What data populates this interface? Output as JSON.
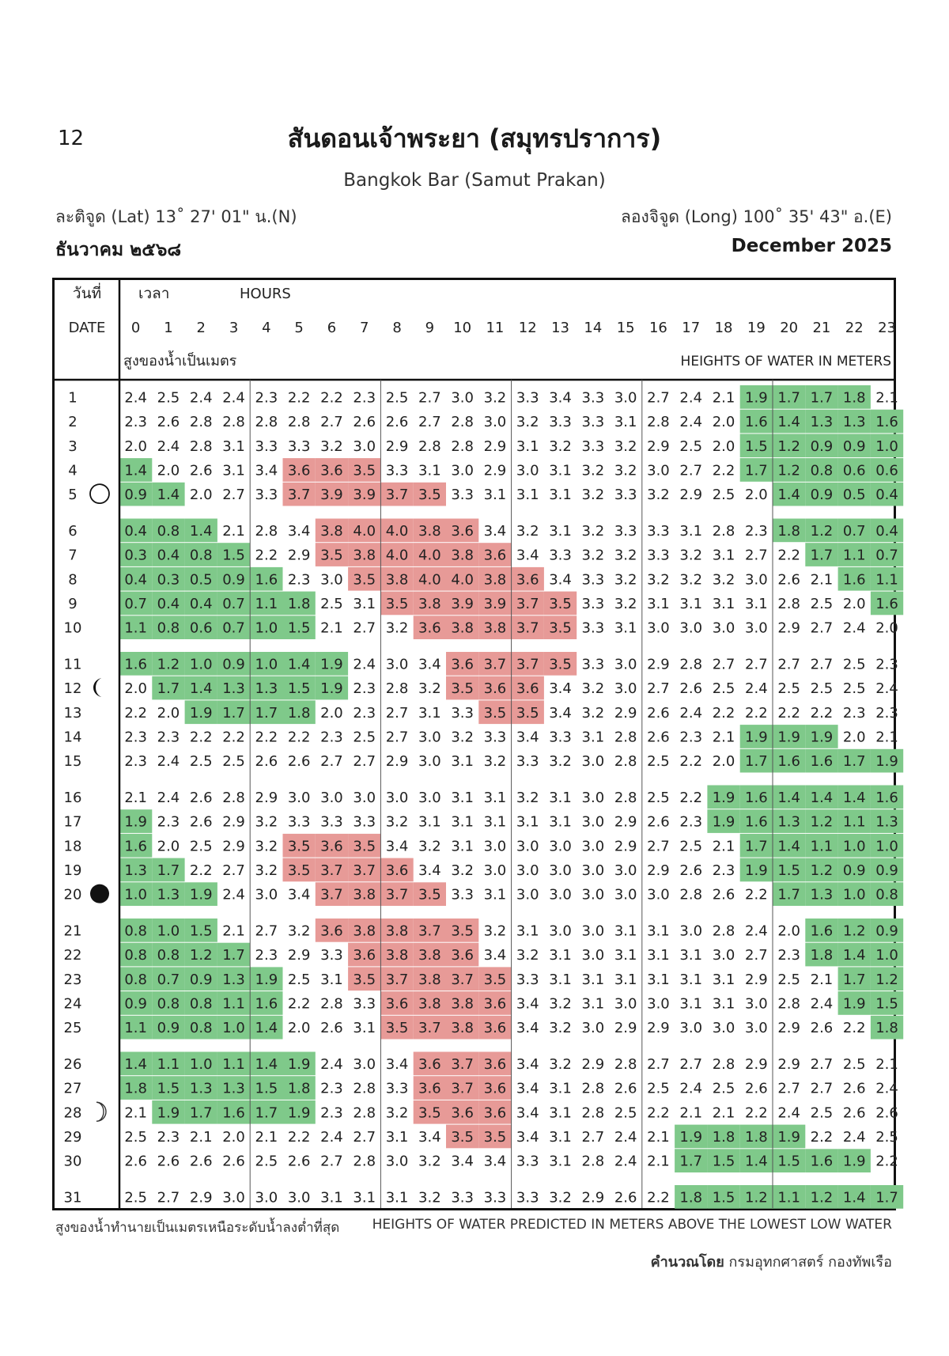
{
  "page_number": "12",
  "title_th": "สันดอนเจ้าพระยา (สมุทรปราการ)",
  "title_en": "Bangkok Bar (Samut Prakan)",
  "latitude": "ละติจูด (Lat) 13˚ 27' 01\" น.(N)",
  "longitude": "ลองจิจูด (Long) 100˚ 35' 43\" อ.(E)",
  "month_th": "ธันวาคม  ๒๕๖๘",
  "month_en": "December 2025",
  "header": {
    "date_th": "วันที่",
    "date_en": "DATE",
    "time_th": "เวลา",
    "hours_en": "HOURS",
    "heights_th": "สูงของน้ำเป็นเมตร",
    "heights_en": "HEIGHTS OF WATER IN METERS",
    "hours": [
      "0",
      "1",
      "2",
      "3",
      "4",
      "5",
      "6",
      "7",
      "8",
      "9",
      "10",
      "11",
      "12",
      "13",
      "14",
      "15",
      "16",
      "17",
      "18",
      "19",
      "20",
      "21",
      "22",
      "23"
    ]
  },
  "colors": {
    "low": "#7fc98a",
    "high": "#e79a97",
    "line": "#333333"
  },
  "moon_phases": [
    {
      "day": 5,
      "phase": "full-moon"
    },
    {
      "day": 12,
      "phase": "last-quarter"
    },
    {
      "day": 20,
      "phase": "new-moon"
    },
    {
      "day": 28,
      "phase": "first-quarter"
    }
  ],
  "tide_data": {
    "type": "table",
    "days": [
      1,
      2,
      3,
      4,
      5,
      6,
      7,
      8,
      9,
      10,
      11,
      12,
      13,
      14,
      15,
      16,
      17,
      18,
      19,
      20,
      21,
      22,
      23,
      24,
      25,
      26,
      27,
      28,
      29,
      30,
      31
    ],
    "heights": [
      [
        "2.4",
        "2.5",
        "2.4",
        "2.4",
        "2.3",
        "2.2",
        "2.2",
        "2.3",
        "2.5",
        "2.7",
        "3.0",
        "3.2",
        "3.3",
        "3.4",
        "3.3",
        "3.0",
        "2.7",
        "2.4",
        "2.1",
        "1.9",
        "1.7",
        "1.7",
        "1.8",
        "2.1"
      ],
      [
        "2.3",
        "2.6",
        "2.8",
        "2.8",
        "2.8",
        "2.8",
        "2.7",
        "2.6",
        "2.6",
        "2.7",
        "2.8",
        "3.0",
        "3.2",
        "3.3",
        "3.3",
        "3.1",
        "2.8",
        "2.4",
        "2.0",
        "1.6",
        "1.4",
        "1.3",
        "1.3",
        "1.6"
      ],
      [
        "2.0",
        "2.4",
        "2.8",
        "3.1",
        "3.3",
        "3.3",
        "3.2",
        "3.0",
        "2.9",
        "2.8",
        "2.8",
        "2.9",
        "3.1",
        "3.2",
        "3.3",
        "3.2",
        "2.9",
        "2.5",
        "2.0",
        "1.5",
        "1.2",
        "0.9",
        "0.9",
        "1.0"
      ],
      [
        "1.4",
        "2.0",
        "2.6",
        "3.1",
        "3.4",
        "3.6",
        "3.6",
        "3.5",
        "3.3",
        "3.1",
        "3.0",
        "2.9",
        "3.0",
        "3.1",
        "3.2",
        "3.2",
        "3.0",
        "2.7",
        "2.2",
        "1.7",
        "1.2",
        "0.8",
        "0.6",
        "0.6"
      ],
      [
        "0.9",
        "1.4",
        "2.0",
        "2.7",
        "3.3",
        "3.7",
        "3.9",
        "3.9",
        "3.7",
        "3.5",
        "3.3",
        "3.1",
        "3.1",
        "3.1",
        "3.2",
        "3.3",
        "3.2",
        "2.9",
        "2.5",
        "2.0",
        "1.4",
        "0.9",
        "0.5",
        "0.4"
      ],
      [
        "0.4",
        "0.8",
        "1.4",
        "2.1",
        "2.8",
        "3.4",
        "3.8",
        "4.0",
        "4.0",
        "3.8",
        "3.6",
        "3.4",
        "3.2",
        "3.1",
        "3.2",
        "3.3",
        "3.3",
        "3.1",
        "2.8",
        "2.3",
        "1.8",
        "1.2",
        "0.7",
        "0.4"
      ],
      [
        "0.3",
        "0.4",
        "0.8",
        "1.5",
        "2.2",
        "2.9",
        "3.5",
        "3.8",
        "4.0",
        "4.0",
        "3.8",
        "3.6",
        "3.4",
        "3.3",
        "3.2",
        "3.2",
        "3.3",
        "3.2",
        "3.1",
        "2.7",
        "2.2",
        "1.7",
        "1.1",
        "0.7"
      ],
      [
        "0.4",
        "0.3",
        "0.5",
        "0.9",
        "1.6",
        "2.3",
        "3.0",
        "3.5",
        "3.8",
        "4.0",
        "4.0",
        "3.8",
        "3.6",
        "3.4",
        "3.3",
        "3.2",
        "3.2",
        "3.2",
        "3.2",
        "3.0",
        "2.6",
        "2.1",
        "1.6",
        "1.1"
      ],
      [
        "0.7",
        "0.4",
        "0.4",
        "0.7",
        "1.1",
        "1.8",
        "2.5",
        "3.1",
        "3.5",
        "3.8",
        "3.9",
        "3.9",
        "3.7",
        "3.5",
        "3.3",
        "3.2",
        "3.1",
        "3.1",
        "3.1",
        "3.1",
        "2.8",
        "2.5",
        "2.0",
        "1.6"
      ],
      [
        "1.1",
        "0.8",
        "0.6",
        "0.7",
        "1.0",
        "1.5",
        "2.1",
        "2.7",
        "3.2",
        "3.6",
        "3.8",
        "3.8",
        "3.7",
        "3.5",
        "3.3",
        "3.1",
        "3.0",
        "3.0",
        "3.0",
        "3.0",
        "2.9",
        "2.7",
        "2.4",
        "2.0"
      ],
      [
        "1.6",
        "1.2",
        "1.0",
        "0.9",
        "1.0",
        "1.4",
        "1.9",
        "2.4",
        "3.0",
        "3.4",
        "3.6",
        "3.7",
        "3.7",
        "3.5",
        "3.3",
        "3.0",
        "2.9",
        "2.8",
        "2.7",
        "2.7",
        "2.7",
        "2.7",
        "2.5",
        "2.3"
      ],
      [
        "2.0",
        "1.7",
        "1.4",
        "1.3",
        "1.3",
        "1.5",
        "1.9",
        "2.3",
        "2.8",
        "3.2",
        "3.5",
        "3.6",
        "3.6",
        "3.4",
        "3.2",
        "3.0",
        "2.7",
        "2.6",
        "2.5",
        "2.4",
        "2.5",
        "2.5",
        "2.5",
        "2.4"
      ],
      [
        "2.2",
        "2.0",
        "1.9",
        "1.7",
        "1.7",
        "1.8",
        "2.0",
        "2.3",
        "2.7",
        "3.1",
        "3.3",
        "3.5",
        "3.5",
        "3.4",
        "3.2",
        "2.9",
        "2.6",
        "2.4",
        "2.2",
        "2.2",
        "2.2",
        "2.2",
        "2.3",
        "2.3"
      ],
      [
        "2.3",
        "2.3",
        "2.2",
        "2.2",
        "2.2",
        "2.2",
        "2.3",
        "2.5",
        "2.7",
        "3.0",
        "3.2",
        "3.3",
        "3.4",
        "3.3",
        "3.1",
        "2.8",
        "2.6",
        "2.3",
        "2.1",
        "1.9",
        "1.9",
        "1.9",
        "2.0",
        "2.1"
      ],
      [
        "2.3",
        "2.4",
        "2.5",
        "2.5",
        "2.6",
        "2.6",
        "2.7",
        "2.7",
        "2.9",
        "3.0",
        "3.1",
        "3.2",
        "3.3",
        "3.2",
        "3.0",
        "2.8",
        "2.5",
        "2.2",
        "2.0",
        "1.7",
        "1.6",
        "1.6",
        "1.7",
        "1.9"
      ],
      [
        "2.1",
        "2.4",
        "2.6",
        "2.8",
        "2.9",
        "3.0",
        "3.0",
        "3.0",
        "3.0",
        "3.0",
        "3.1",
        "3.1",
        "3.2",
        "3.1",
        "3.0",
        "2.8",
        "2.5",
        "2.2",
        "1.9",
        "1.6",
        "1.4",
        "1.4",
        "1.4",
        "1.6"
      ],
      [
        "1.9",
        "2.3",
        "2.6",
        "2.9",
        "3.2",
        "3.3",
        "3.3",
        "3.3",
        "3.2",
        "3.1",
        "3.1",
        "3.1",
        "3.1",
        "3.1",
        "3.0",
        "2.9",
        "2.6",
        "2.3",
        "1.9",
        "1.6",
        "1.3",
        "1.2",
        "1.1",
        "1.3"
      ],
      [
        "1.6",
        "2.0",
        "2.5",
        "2.9",
        "3.2",
        "3.5",
        "3.6",
        "3.5",
        "3.4",
        "3.2",
        "3.1",
        "3.0",
        "3.0",
        "3.0",
        "3.0",
        "2.9",
        "2.7",
        "2.5",
        "2.1",
        "1.7",
        "1.4",
        "1.1",
        "1.0",
        "1.0"
      ],
      [
        "1.3",
        "1.7",
        "2.2",
        "2.7",
        "3.2",
        "3.5",
        "3.7",
        "3.7",
        "3.6",
        "3.4",
        "3.2",
        "3.0",
        "3.0",
        "3.0",
        "3.0",
        "3.0",
        "2.9",
        "2.6",
        "2.3",
        "1.9",
        "1.5",
        "1.2",
        "0.9",
        "0.9"
      ],
      [
        "1.0",
        "1.3",
        "1.9",
        "2.4",
        "3.0",
        "3.4",
        "3.7",
        "3.8",
        "3.7",
        "3.5",
        "3.3",
        "3.1",
        "3.0",
        "3.0",
        "3.0",
        "3.0",
        "3.0",
        "2.8",
        "2.6",
        "2.2",
        "1.7",
        "1.3",
        "1.0",
        "0.8"
      ],
      [
        "0.8",
        "1.0",
        "1.5",
        "2.1",
        "2.7",
        "3.2",
        "3.6",
        "3.8",
        "3.8",
        "3.7",
        "3.5",
        "3.2",
        "3.1",
        "3.0",
        "3.0",
        "3.1",
        "3.1",
        "3.0",
        "2.8",
        "2.4",
        "2.0",
        "1.6",
        "1.2",
        "0.9"
      ],
      [
        "0.8",
        "0.8",
        "1.2",
        "1.7",
        "2.3",
        "2.9",
        "3.3",
        "3.6",
        "3.8",
        "3.8",
        "3.6",
        "3.4",
        "3.2",
        "3.1",
        "3.0",
        "3.1",
        "3.1",
        "3.1",
        "3.0",
        "2.7",
        "2.3",
        "1.8",
        "1.4",
        "1.0"
      ],
      [
        "0.8",
        "0.7",
        "0.9",
        "1.3",
        "1.9",
        "2.5",
        "3.1",
        "3.5",
        "3.7",
        "3.8",
        "3.7",
        "3.5",
        "3.3",
        "3.1",
        "3.1",
        "3.1",
        "3.1",
        "3.1",
        "3.1",
        "2.9",
        "2.5",
        "2.1",
        "1.7",
        "1.2"
      ],
      [
        "0.9",
        "0.8",
        "0.8",
        "1.1",
        "1.6",
        "2.2",
        "2.8",
        "3.3",
        "3.6",
        "3.8",
        "3.8",
        "3.6",
        "3.4",
        "3.2",
        "3.1",
        "3.0",
        "3.0",
        "3.1",
        "3.1",
        "3.0",
        "2.8",
        "2.4",
        "1.9",
        "1.5"
      ],
      [
        "1.1",
        "0.9",
        "0.8",
        "1.0",
        "1.4",
        "2.0",
        "2.6",
        "3.1",
        "3.5",
        "3.7",
        "3.8",
        "3.6",
        "3.4",
        "3.2",
        "3.0",
        "2.9",
        "2.9",
        "3.0",
        "3.0",
        "3.0",
        "2.9",
        "2.6",
        "2.2",
        "1.8"
      ],
      [
        "1.4",
        "1.1",
        "1.0",
        "1.1",
        "1.4",
        "1.9",
        "2.4",
        "3.0",
        "3.4",
        "3.6",
        "3.7",
        "3.6",
        "3.4",
        "3.2",
        "2.9",
        "2.8",
        "2.7",
        "2.7",
        "2.8",
        "2.9",
        "2.9",
        "2.7",
        "2.5",
        "2.1"
      ],
      [
        "1.8",
        "1.5",
        "1.3",
        "1.3",
        "1.5",
        "1.8",
        "2.3",
        "2.8",
        "3.3",
        "3.6",
        "3.7",
        "3.6",
        "3.4",
        "3.1",
        "2.8",
        "2.6",
        "2.5",
        "2.4",
        "2.5",
        "2.6",
        "2.7",
        "2.7",
        "2.6",
        "2.4"
      ],
      [
        "2.1",
        "1.9",
        "1.7",
        "1.6",
        "1.7",
        "1.9",
        "2.3",
        "2.8",
        "3.2",
        "3.5",
        "3.6",
        "3.6",
        "3.4",
        "3.1",
        "2.8",
        "2.5",
        "2.2",
        "2.1",
        "2.1",
        "2.2",
        "2.4",
        "2.5",
        "2.6",
        "2.6"
      ],
      [
        "2.5",
        "2.3",
        "2.1",
        "2.0",
        "2.1",
        "2.2",
        "2.4",
        "2.7",
        "3.1",
        "3.4",
        "3.5",
        "3.5",
        "3.4",
        "3.1",
        "2.7",
        "2.4",
        "2.1",
        "1.9",
        "1.8",
        "1.8",
        "1.9",
        "2.2",
        "2.4",
        "2.5"
      ],
      [
        "2.6",
        "2.6",
        "2.6",
        "2.6",
        "2.5",
        "2.6",
        "2.7",
        "2.8",
        "3.0",
        "3.2",
        "3.4",
        "3.4",
        "3.3",
        "3.1",
        "2.8",
        "2.4",
        "2.1",
        "1.7",
        "1.5",
        "1.4",
        "1.5",
        "1.6",
        "1.9",
        "2.2"
      ],
      [
        "2.5",
        "2.7",
        "2.9",
        "3.0",
        "3.0",
        "3.0",
        "3.1",
        "3.1",
        "3.1",
        "3.2",
        "3.3",
        "3.3",
        "3.3",
        "3.2",
        "2.9",
        "2.6",
        "2.2",
        "1.8",
        "1.5",
        "1.2",
        "1.1",
        "1.2",
        "1.4",
        "1.7"
      ]
    ]
  },
  "highlight": {
    "low": [
      [
        19,
        20,
        21,
        22
      ],
      [
        19,
        20,
        21,
        22,
        23
      ],
      [
        19,
        20,
        21,
        22,
        23
      ],
      [
        0,
        19,
        20,
        21,
        22,
        23
      ],
      [
        0,
        1,
        20,
        21,
        22,
        23
      ],
      [
        0,
        1,
        2,
        20,
        21,
        22,
        23
      ],
      [
        0,
        1,
        2,
        3,
        21,
        22,
        23
      ],
      [
        0,
        1,
        2,
        3,
        4,
        22,
        23
      ],
      [
        0,
        1,
        2,
        3,
        4,
        5,
        23
      ],
      [
        0,
        1,
        2,
        3,
        4,
        5
      ],
      [
        0,
        1,
        2,
        3,
        4,
        5,
        6
      ],
      [
        1,
        2,
        3,
        4,
        5,
        6
      ],
      [
        2,
        3,
        4,
        5
      ],
      [
        19,
        20,
        21
      ],
      [
        19,
        20,
        21,
        22,
        23
      ],
      [
        18,
        19,
        20,
        21,
        22,
        23
      ],
      [
        0,
        18,
        19,
        20,
        21,
        22,
        23
      ],
      [
        0,
        19,
        20,
        21,
        22,
        23
      ],
      [
        0,
        1,
        19,
        20,
        21,
        22,
        23
      ],
      [
        0,
        1,
        2,
        20,
        21,
        22,
        23
      ],
      [
        0,
        1,
        2,
        21,
        22,
        23
      ],
      [
        0,
        1,
        2,
        3,
        21,
        22,
        23
      ],
      [
        0,
        1,
        2,
        3,
        4,
        22,
        23
      ],
      [
        0,
        1,
        2,
        3,
        4,
        22,
        23
      ],
      [
        0,
        1,
        2,
        3,
        4,
        23
      ],
      [
        0,
        1,
        2,
        3,
        4,
        5
      ],
      [
        0,
        1,
        2,
        3,
        4,
        5
      ],
      [
        1,
        2,
        3,
        4,
        5
      ],
      [
        17,
        18,
        19,
        20
      ],
      [
        17,
        18,
        19,
        20,
        21,
        22
      ],
      [
        17,
        18,
        19,
        20,
        21,
        22,
        23
      ]
    ],
    "high": [
      [],
      [],
      [],
      [
        5,
        6,
        7
      ],
      [
        5,
        6,
        7,
        8,
        9
      ],
      [
        6,
        7,
        8,
        9,
        10
      ],
      [
        6,
        7,
        8,
        9,
        10,
        11
      ],
      [
        7,
        8,
        9,
        10,
        11,
        12
      ],
      [
        8,
        9,
        10,
        11,
        12,
        13
      ],
      [
        9,
        10,
        11,
        12,
        13
      ],
      [
        10,
        11,
        12,
        13
      ],
      [
        10,
        11,
        12
      ],
      [
        11,
        12
      ],
      [],
      [],
      [],
      [],
      [
        5,
        6,
        7
      ],
      [
        5,
        6,
        7,
        8
      ],
      [
        6,
        7,
        8,
        9
      ],
      [
        6,
        7,
        8,
        9,
        10
      ],
      [
        7,
        8,
        9,
        10
      ],
      [
        7,
        8,
        9,
        10,
        11
      ],
      [
        8,
        9,
        10,
        11
      ],
      [
        8,
        9,
        10,
        11
      ],
      [
        9,
        10,
        11
      ],
      [
        9,
        10,
        11
      ],
      [
        9,
        10,
        11
      ],
      [
        10,
        11
      ],
      [],
      []
    ]
  },
  "footer_th": "สูงของน้ำทำนายเป็นเมตรเหนือระดับน้ำลงต่ำที่สุด",
  "footer_en": "HEIGHTS OF WATER PREDICTED IN METERS ABOVE THE LOWEST LOW WATER",
  "credit_label": "คำนวณโดย",
  "credit_org": "กรมอุทกศาสตร์ กองทัพเรือ"
}
